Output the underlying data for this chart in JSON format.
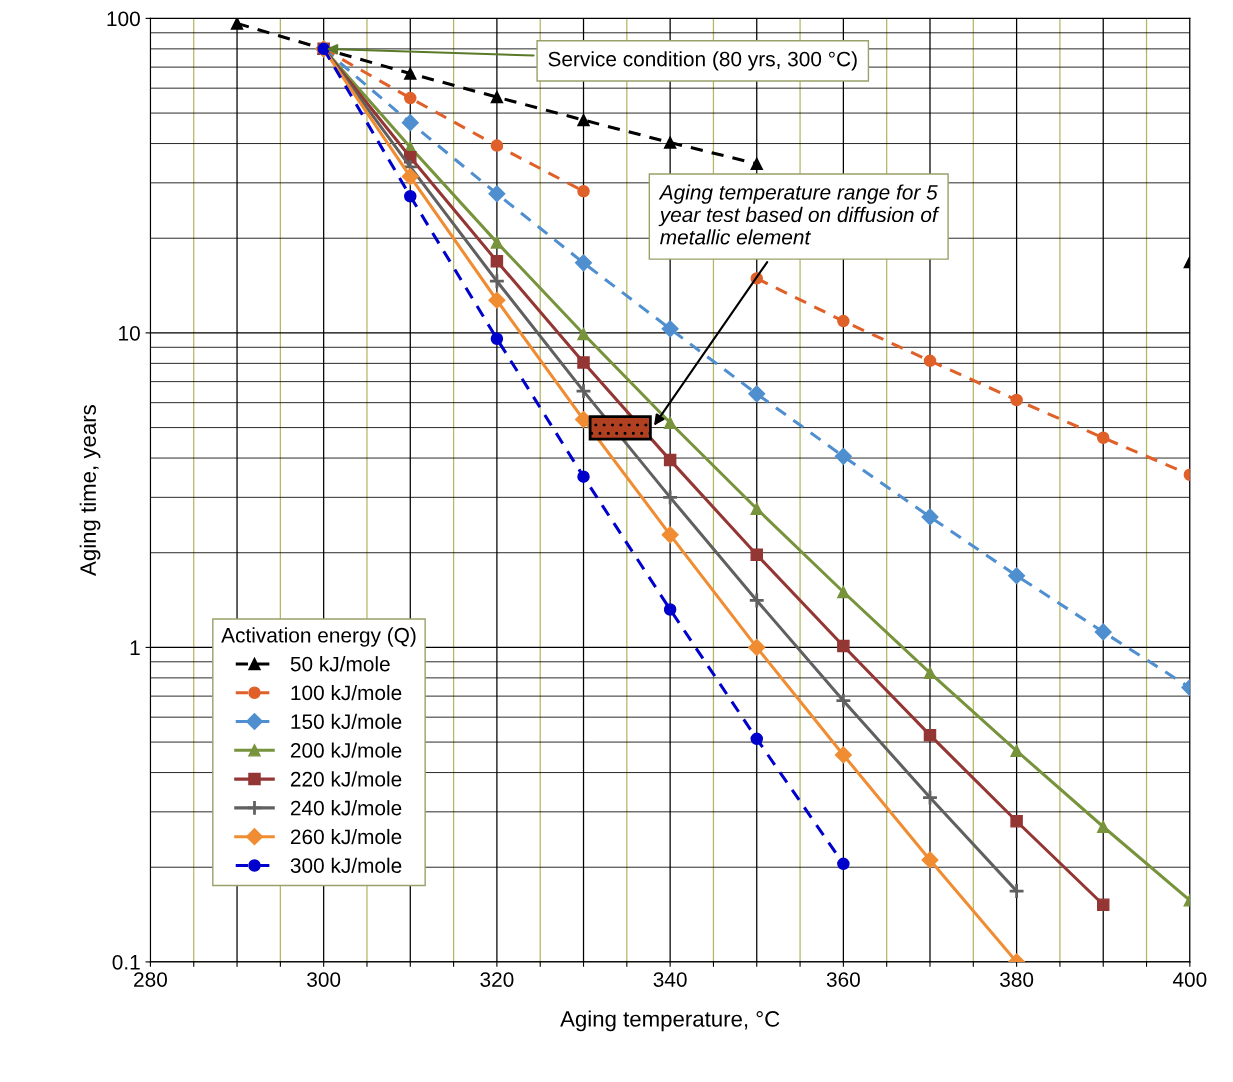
{
  "chart_data": {
    "type": "line",
    "xlabel": "Aging temperature, °C",
    "ylabel": "Aging time, years",
    "legend_title": "Activation energy (Q)",
    "log": "y",
    "grid": true,
    "legend": "bottom left",
    "xlim": [
      280,
      400
    ],
    "xticks": [
      280,
      {
        "value": 285,
        "label": null
      },
      {
        "value": 290,
        "label": null
      },
      {
        "value": 295,
        "label": null
      },
      300,
      {
        "value": 305,
        "label": null
      },
      {
        "value": 310,
        "label": null
      },
      {
        "value": 315,
        "label": null
      },
      320,
      {
        "value": 325,
        "label": null
      },
      {
        "value": 330,
        "label": null
      },
      {
        "value": 335,
        "label": null
      },
      340,
      {
        "value": 345,
        "label": null
      },
      {
        "value": 350,
        "label": null
      },
      {
        "value": 355,
        "label": null
      },
      360,
      {
        "value": 365,
        "label": null
      },
      {
        "value": 370,
        "label": null
      },
      {
        "value": 375,
        "label": null
      },
      380,
      {
        "value": 385,
        "label": null
      },
      {
        "value": 390,
        "label": null
      },
      {
        "value": 395,
        "label": null
      },
      400
    ],
    "ylim": [
      0.1,
      100
    ],
    "yticks": [
      0.1,
      1,
      10,
      100
    ],
    "series": [
      {
        "name": "50 kJ/mole",
        "color": "#000000",
        "marker": "triangle",
        "line_style": "dashed",
        "x": [
          290,
          300,
          310,
          320,
          330,
          340,
          350,
          360,
          370,
          380,
          390,
          400
        ],
        "values": [
          96.4,
          80,
          66.8,
          56.2,
          47.5,
          40.3,
          34.5,
          null,
          null,
          null,
          null,
          16.8
        ]
      },
      {
        "name": "100 kJ/mole",
        "color": "#e0602a",
        "marker": "circle",
        "line_style": "dashed",
        "x": [
          300,
          310,
          320,
          330,
          340,
          350,
          360,
          370,
          380,
          390,
          400
        ],
        "values": [
          80,
          55.8,
          39.4,
          28.2,
          null,
          14.9,
          10.9,
          8.15,
          6.12,
          4.64,
          3.54
        ]
      },
      {
        "name": "150 kJ/mole",
        "color": "#4f8fcf",
        "marker": "diamond",
        "line_style": "dashed",
        "x": [
          300,
          310,
          320,
          330,
          340,
          350,
          360,
          370,
          380,
          390,
          400
        ],
        "values": [
          80,
          46.6,
          27.7,
          16.7,
          10.3,
          6.4,
          4.05,
          2.6,
          1.69,
          1.12,
          0.745
        ]
      },
      {
        "name": "200 kJ/mole",
        "color": "#77933c",
        "marker": "triangle",
        "line_style": "solid",
        "x": [
          300,
          310,
          320,
          330,
          340,
          350,
          360,
          370,
          380,
          390,
          400
        ],
        "values": [
          80,
          38.9,
          19.4,
          9.92,
          5.18,
          2.76,
          1.5,
          0.83,
          0.469,
          0.269,
          0.157
        ]
      },
      {
        "name": "220 kJ/mole",
        "color": "#943634",
        "marker": "square",
        "line_style": "solid",
        "x": [
          300,
          310,
          320,
          330,
          340,
          350,
          360,
          370,
          380,
          390
        ],
        "values": [
          80,
          36.2,
          16.9,
          8.05,
          3.94,
          1.97,
          1.01,
          0.526,
          0.28,
          0.152
        ]
      },
      {
        "name": "240 kJ/mole",
        "color": "#606060",
        "marker": "cross",
        "line_style": "solid",
        "x": [
          300,
          310,
          320,
          330,
          340,
          350,
          360,
          370,
          380
        ],
        "values": [
          80,
          33.7,
          14.6,
          6.53,
          3.0,
          1.41,
          0.677,
          0.333,
          0.168
        ]
      },
      {
        "name": "260 kJ/mole",
        "color": "#f08c32",
        "marker": "diamond",
        "line_style": "solid",
        "x": [
          300,
          310,
          320,
          330,
          340,
          350,
          360,
          370,
          380
        ],
        "values": [
          80,
          31.4,
          12.7,
          5.3,
          2.28,
          1.0,
          0.455,
          0.211,
          0.1
        ]
      },
      {
        "name": "300 kJ/mole",
        "color": "#0000cc",
        "marker": "circle",
        "line_style": "dashed",
        "x": [
          300,
          310,
          320,
          330,
          340,
          350,
          360
        ],
        "values": [
          80,
          27.2,
          9.58,
          3.49,
          1.32,
          0.512,
          0.205
        ]
      }
    ],
    "annotations": [
      {
        "text": "Service condition (80 yrs, 300 °C)",
        "x": 300,
        "y": 80
      },
      "Aging temperature range for 5\nyear test based on diffusion of\nmetallic element"
    ]
  }
}
